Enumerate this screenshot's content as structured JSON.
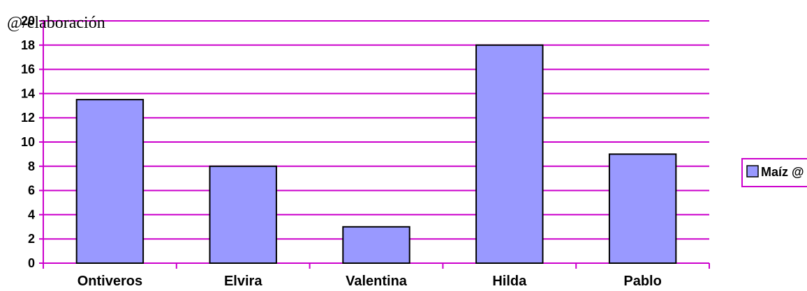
{
  "chart_data": {
    "type": "bar",
    "title": "@/elaboración",
    "categories": [
      "Ontiveros",
      "Elvira",
      "Valentina",
      "Hilda",
      "Pablo"
    ],
    "series": [
      {
        "name": "Maíz @",
        "values": [
          13.5,
          8,
          3,
          18,
          9
        ]
      }
    ],
    "yticks": [
      "0",
      "2",
      "4",
      "6",
      "8",
      "10",
      "12",
      "14",
      "16",
      "18",
      "20"
    ],
    "ylim": [
      0,
      20
    ],
    "grid": true,
    "legend_position": "right",
    "colors": {
      "bar_fill": "#9999ff",
      "bar_stroke": "#000000",
      "gridline": "#cc00cc",
      "axis": "#cc00cc",
      "legend_border": "#cc00cc"
    }
  }
}
